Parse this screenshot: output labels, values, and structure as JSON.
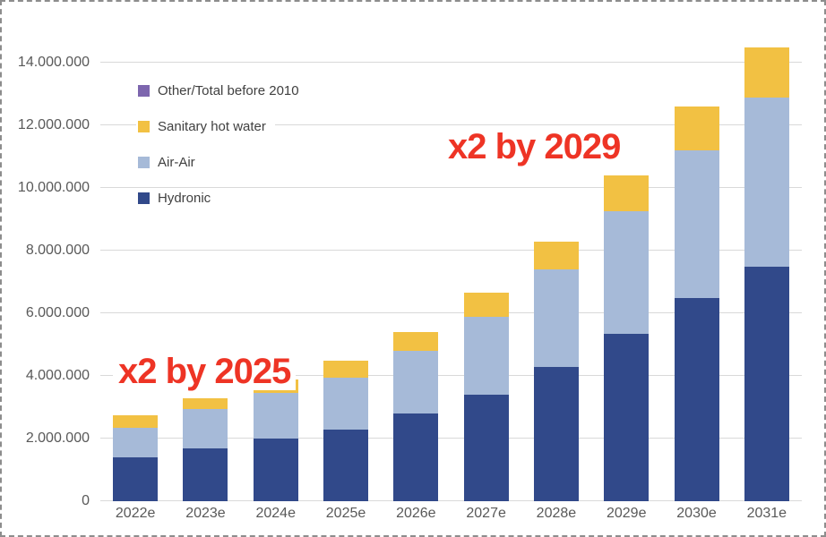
{
  "chart_data": {
    "type": "bar",
    "stacked": true,
    "title": "",
    "xlabel": "",
    "ylabel": "",
    "grid": true,
    "legend_position": "top-left",
    "number_format": "thousands separated by dots",
    "categories": [
      "2022e",
      "2023e",
      "2024e",
      "2025e",
      "2026e",
      "2027e",
      "2028e",
      "2029e",
      "2030e",
      "2031e"
    ],
    "series": [
      {
        "name": "Hydronic",
        "color": "#31498A",
        "values": [
          1400000,
          1700000,
          2000000,
          2300000,
          2800000,
          3400000,
          4300000,
          5350000,
          6500000,
          7500000
        ]
      },
      {
        "name": "Air-Air",
        "color": "#A6BAD8",
        "values": [
          950000,
          1250000,
          1450000,
          1650000,
          2000000,
          2500000,
          3100000,
          3900000,
          4700000,
          5400000
        ]
      },
      {
        "name": "Sanitary hot water",
        "color": "#F2C143",
        "values": [
          400000,
          350000,
          450000,
          550000,
          600000,
          750000,
          900000,
          1150000,
          1400000,
          1600000
        ]
      },
      {
        "name": "Other/Total before 2010",
        "color": "#7D66AE",
        "values": [
          0,
          0,
          0,
          0,
          0,
          0,
          0,
          0,
          0,
          0
        ]
      }
    ],
    "legend_order": [
      "Other/Total before 2010",
      "Sanitary hot water",
      "Air-Air",
      "Hydronic"
    ],
    "yticks": [
      {
        "label": "14.000.000",
        "value": 14000000
      },
      {
        "label": "12.000.000",
        "value": 12000000
      },
      {
        "label": "10.000.000",
        "value": 10000000
      },
      {
        "label": "8.000.000",
        "value": 8000000
      },
      {
        "label": "6.000.000",
        "value": 6000000
      },
      {
        "label": "4.000.000",
        "value": 4000000
      },
      {
        "label": "2.000.000",
        "value": 2000000
      },
      {
        "label": "0",
        "value": 0
      }
    ],
    "ylim": [
      0,
      14800000
    ]
  },
  "annotations": [
    {
      "text": "x2 by 2025",
      "color": "#EE3425"
    },
    {
      "text": "x2 by 2029",
      "color": "#EE3425"
    }
  ]
}
